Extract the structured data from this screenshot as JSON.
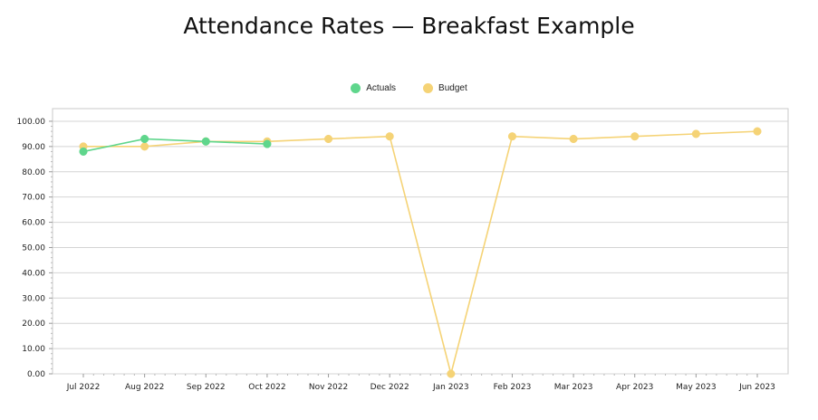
{
  "chart_data": {
    "type": "line",
    "title": "Attendance Rates — Breakfast Example",
    "categories": [
      "Jul 2022",
      "Aug 2022",
      "Sep 2022",
      "Oct 2022",
      "Nov 2022",
      "Dec 2022",
      "Jan 2023",
      "Feb 2023",
      "Mar 2023",
      "Apr 2023",
      "May 2023",
      "Jun 2023"
    ],
    "y_ticks": [
      "0.00",
      "10.00",
      "20.00",
      "30.00",
      "40.00",
      "50.00",
      "60.00",
      "70.00",
      "80.00",
      "90.00",
      "100.00"
    ],
    "ylim": [
      0,
      105
    ],
    "grid": true,
    "legend_position": "top-center",
    "series": [
      {
        "name": "Actuals",
        "color": "#5fd68c",
        "values": [
          88,
          93,
          92,
          91,
          null,
          null,
          null,
          null,
          null,
          null,
          null,
          null
        ]
      },
      {
        "name": "Budget",
        "color": "#f5d376",
        "values": [
          90,
          90,
          92,
          92,
          93,
          94,
          0,
          94,
          93,
          94,
          95,
          96
        ]
      }
    ]
  }
}
